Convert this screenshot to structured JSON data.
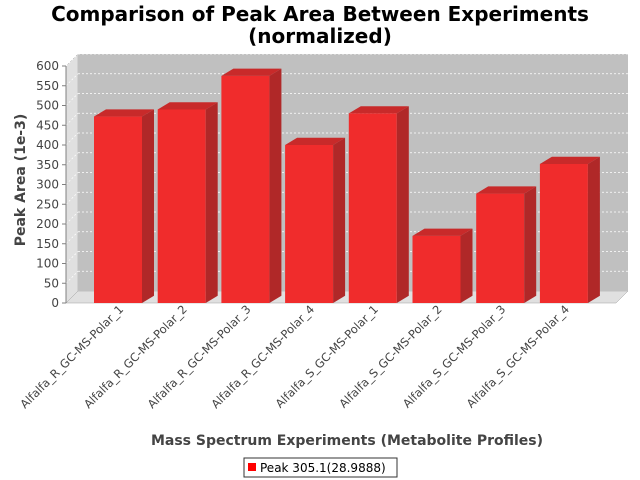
{
  "chart_data": {
    "type": "bar",
    "title_line1": "Comparison of Peak Area Between Experiments",
    "title_line2": "(normalized)",
    "xlabel": "Mass Spectrum Experiments (Metabolite Profiles)",
    "ylabel": "Peak Area (1e-3)",
    "ylim": [
      0,
      600
    ],
    "yticks": [
      "0",
      "50",
      "100",
      "150",
      "200",
      "250",
      "300",
      "350",
      "400",
      "450",
      "500",
      "550",
      "600"
    ],
    "grid": true,
    "legend_placement": "bottom",
    "categories": [
      "Alfalfa_R_GC-MS-Polar_1",
      "Alfalfa_R_GC-MS-Polar_2",
      "Alfalfa_R_GC-MS-Polar_3",
      "Alfalfa_R_GC-MS-Polar_4",
      "Alfalfa_S_GC-MS-Polar_1",
      "Alfalfa_S_GC-MS-Polar_2",
      "Alfalfa_S_GC-MS-Polar_3",
      "Alfalfa_S_GC-MS-Polar_4"
    ],
    "series": [
      {
        "name": "Peak 305.1(28.9888)",
        "color": "#ff0000",
        "values": [
          472,
          490,
          575,
          400,
          480,
          170,
          277,
          352
        ]
      }
    ],
    "colors": {
      "plot_bg": "#c0c0c0",
      "wall": "#e0e0e0",
      "bar_front": "#f02c2c",
      "bar_top": "#c82a2a",
      "bar_side": "#b02828"
    }
  }
}
